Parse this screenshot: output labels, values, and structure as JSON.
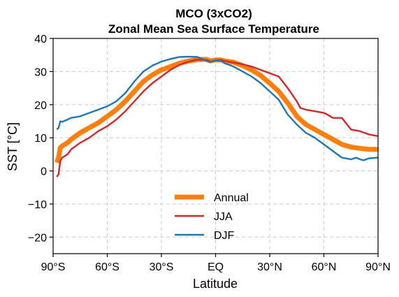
{
  "chart_data": {
    "type": "line",
    "title": "MCO (3xCO2)",
    "subtitle": "Zonal Mean Sea Surface Temperature",
    "xlabel": "Latitude",
    "ylabel": "SST [°C]",
    "xlim": [
      -90,
      90
    ],
    "ylim": [
      -25,
      40
    ],
    "x_ticks": [
      -90,
      -60,
      -30,
      0,
      30,
      60,
      90
    ],
    "x_tick_labels": [
      "90°S",
      "60°S",
      "30°S",
      "EQ",
      "30°N",
      "60°N",
      "90°N"
    ],
    "y_ticks": [
      -20,
      -10,
      0,
      10,
      20,
      30,
      40
    ],
    "y_tick_labels": [
      "−20",
      "−10",
      "0",
      "10",
      "20",
      "30",
      "40"
    ],
    "grid": true,
    "legend_position": "lower-center",
    "series": [
      {
        "name": "Annual",
        "color": "#ff7f0e",
        "x": [
          -88,
          -87,
          -86,
          -85,
          -82,
          -80,
          -75,
          -70,
          -65,
          -60,
          -55,
          -50,
          -45,
          -40,
          -35,
          -30,
          -25,
          -20,
          -15,
          -10,
          -5,
          -3,
          0,
          3,
          5,
          10,
          15,
          20,
          25,
          30,
          35,
          40,
          45,
          50,
          55,
          60,
          65,
          70,
          75,
          80,
          85,
          90
        ],
        "y": [
          2.5,
          4,
          7,
          7.5,
          8.5,
          9.5,
          11.5,
          13,
          14.5,
          16.5,
          18.5,
          21,
          24,
          27,
          29,
          30.5,
          31.5,
          32.5,
          33.2,
          33.6,
          33.7,
          33.2,
          33.5,
          33.5,
          33.2,
          32.8,
          31.8,
          30.5,
          28.8,
          26.5,
          24,
          20.5,
          16.5,
          14,
          12.5,
          11,
          9.5,
          8,
          7.2,
          6.8,
          6.5,
          6.5
        ]
      },
      {
        "name": "JJA",
        "color": "#d62728",
        "x": [
          -88,
          -87,
          -86,
          -85,
          -82,
          -80,
          -75,
          -70,
          -65,
          -60,
          -55,
          -50,
          -45,
          -40,
          -35,
          -30,
          -25,
          -20,
          -15,
          -10,
          -5,
          -3,
          0,
          3,
          5,
          10,
          15,
          20,
          25,
          30,
          35,
          40,
          45,
          47,
          50,
          55,
          60,
          62,
          65,
          70,
          75,
          80,
          85,
          90
        ],
        "y": [
          -1.8,
          -1,
          3,
          4,
          5,
          6.5,
          8.5,
          10,
          12,
          13.5,
          15.5,
          18,
          21,
          24,
          26.5,
          28.5,
          30.5,
          32,
          33,
          33.6,
          33.5,
          33,
          33.4,
          33.5,
          33.2,
          32.7,
          32.2,
          31.5,
          30.5,
          29.5,
          28.5,
          25,
          21,
          19,
          18.5,
          18,
          17.5,
          17,
          16,
          16,
          12.5,
          12,
          11,
          10.5
        ]
      },
      {
        "name": "DJF",
        "color": "#1f77b4",
        "x": [
          -88,
          -87,
          -86,
          -85,
          -82,
          -80,
          -75,
          -70,
          -65,
          -60,
          -55,
          -50,
          -45,
          -40,
          -35,
          -30,
          -25,
          -20,
          -15,
          -10,
          -5,
          -3,
          0,
          3,
          5,
          10,
          15,
          20,
          25,
          30,
          35,
          40,
          45,
          50,
          55,
          60,
          65,
          70,
          75,
          78,
          80,
          82,
          85,
          90
        ],
        "y": [
          12.5,
          13,
          15,
          14.8,
          15.5,
          16,
          16.5,
          17.5,
          18.5,
          19.5,
          21,
          23.5,
          27,
          30,
          31.8,
          33,
          33.8,
          34.4,
          34.5,
          34.4,
          33.2,
          32.9,
          33.4,
          33.2,
          32.5,
          31.5,
          30,
          28.5,
          26.5,
          24,
          21.5,
          17,
          14,
          11.5,
          10,
          8,
          6,
          4,
          3.5,
          4,
          3.5,
          3.2,
          3.8,
          4
        ]
      }
    ]
  }
}
